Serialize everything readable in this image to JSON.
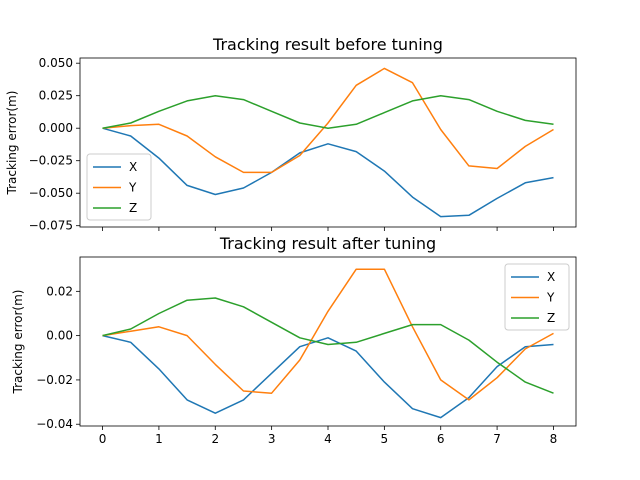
{
  "chart_data": [
    {
      "type": "line",
      "title": "Tracking result before tuning",
      "xlabel": "",
      "ylabel": "Tracking error(m)",
      "xlim": [
        -0.4,
        8.4
      ],
      "ylim": [
        -0.076,
        0.054
      ],
      "xticks": [
        0,
        1,
        2,
        3,
        4,
        5,
        6,
        7,
        8
      ],
      "xticklabels_visible": false,
      "yticks": [
        -0.075,
        -0.05,
        -0.025,
        0.0,
        0.025,
        0.05
      ],
      "yticklabels": [
        "−0.075",
        "−0.050",
        "−0.025",
        "0.000",
        "0.025",
        "0.050"
      ],
      "legend": "lower left",
      "grid": false,
      "x": [
        0,
        0.5,
        1,
        1.5,
        2,
        2.5,
        3,
        3.5,
        4,
        4.5,
        5,
        5.5,
        6,
        6.5,
        7,
        7.5,
        8
      ],
      "series": [
        {
          "name": "X",
          "color": "#1f77b4",
          "values": [
            0.0,
            -0.006,
            -0.023,
            -0.044,
            -0.051,
            -0.046,
            -0.034,
            -0.019,
            -0.012,
            -0.018,
            -0.033,
            -0.053,
            -0.068,
            -0.067,
            -0.054,
            -0.042,
            -0.038
          ]
        },
        {
          "name": "Y",
          "color": "#ff7f0e",
          "values": [
            0.0,
            0.002,
            0.003,
            -0.006,
            -0.022,
            -0.034,
            -0.034,
            -0.021,
            0.004,
            0.033,
            0.046,
            0.035,
            -0.001,
            -0.029,
            -0.031,
            -0.014,
            -0.001
          ]
        },
        {
          "name": "Z",
          "color": "#2ca02c",
          "values": [
            0.0,
            0.004,
            0.013,
            0.021,
            0.025,
            0.022,
            0.013,
            0.004,
            0.0,
            0.003,
            0.012,
            0.021,
            0.025,
            0.022,
            0.013,
            0.006,
            0.003
          ]
        }
      ]
    },
    {
      "type": "line",
      "title": "Tracking result after tuning",
      "xlabel": "",
      "ylabel": "Tracking error(m)",
      "xlim": [
        -0.4,
        8.4
      ],
      "ylim": [
        -0.0408,
        0.0355
      ],
      "xticks": [
        0,
        1,
        2,
        3,
        4,
        5,
        6,
        7,
        8
      ],
      "xticklabels": [
        "0",
        "1",
        "2",
        "3",
        "4",
        "5",
        "6",
        "7",
        "8"
      ],
      "yticks": [
        -0.04,
        -0.02,
        0.0,
        0.02
      ],
      "yticklabels": [
        "−0.04",
        "−0.02",
        "0.00",
        "0.02"
      ],
      "legend": "upper right",
      "grid": false,
      "x": [
        0,
        0.5,
        1,
        1.5,
        2,
        2.5,
        3,
        3.5,
        4,
        4.5,
        5,
        5.5,
        6,
        6.5,
        7,
        7.5,
        8
      ],
      "series": [
        {
          "name": "X",
          "color": "#1f77b4",
          "values": [
            0.0,
            -0.003,
            -0.015,
            -0.029,
            -0.035,
            -0.029,
            -0.017,
            -0.005,
            -0.001,
            -0.007,
            -0.021,
            -0.033,
            -0.037,
            -0.028,
            -0.014,
            -0.005,
            -0.004
          ]
        },
        {
          "name": "Y",
          "color": "#ff7f0e",
          "values": [
            0.0,
            0.002,
            0.004,
            0.0,
            -0.013,
            -0.025,
            -0.026,
            -0.011,
            0.011,
            0.03,
            0.03,
            0.004,
            -0.02,
            -0.029,
            -0.019,
            -0.006,
            0.001
          ]
        },
        {
          "name": "Z",
          "color": "#2ca02c",
          "values": [
            0.0,
            0.003,
            0.01,
            0.016,
            0.017,
            0.013,
            0.006,
            -0.001,
            -0.004,
            -0.003,
            0.001,
            0.005,
            0.005,
            -0.002,
            -0.012,
            -0.021,
            -0.026
          ]
        }
      ]
    }
  ]
}
